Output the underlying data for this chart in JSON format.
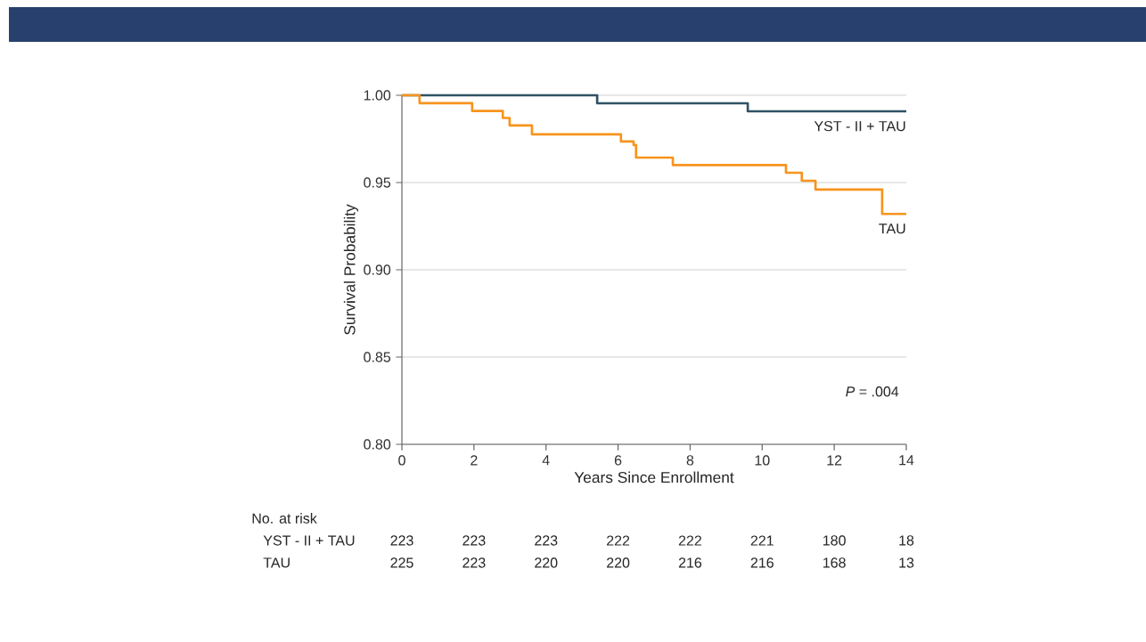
{
  "chart_data": {
    "type": "step",
    "xlabel": "Years Since Enrollment",
    "ylabel": "Survival Probability",
    "xlim": [
      0,
      14
    ],
    "ylim": [
      0.8,
      1.0
    ],
    "xticks": [
      0,
      2,
      4,
      6,
      8,
      10,
      12,
      14
    ],
    "yticks": [
      {
        "value": 0.8,
        "label": "0.80"
      },
      {
        "value": 0.85,
        "label": "0.85"
      },
      {
        "value": 0.9,
        "label": "0.90"
      },
      {
        "value": 0.95,
        "label": "0.95"
      },
      {
        "value": 1.0,
        "label": "1.00"
      }
    ],
    "grid": "y",
    "series": [
      {
        "name": "YST - II + TAU",
        "color": "#2f5263",
        "x": [
          0,
          5.42,
          9.6,
          14
        ],
        "values": [
          1.0,
          0.9954,
          0.9908,
          0.9908
        ]
      },
      {
        "name": "TAU",
        "color": "#f7941d",
        "x": [
          0,
          0.49,
          1.95,
          2.8,
          2.99,
          3.61,
          6.08,
          6.43,
          6.5,
          7.52,
          10.66,
          11.1,
          11.48,
          13.33,
          14
        ],
        "values": [
          1.0,
          0.9955,
          0.991,
          0.987,
          0.9827,
          0.9776,
          0.9735,
          0.9715,
          0.9643,
          0.96,
          0.9556,
          0.951,
          0.946,
          0.932,
          0.932
        ]
      }
    ],
    "annotations": [
      "*P* = .004",
      "No. at risk",
      "YST - II + TAU",
      "223",
      "223",
      "223",
      "222",
      "222",
      "221",
      "180",
      "18",
      "TAU",
      "225",
      "223",
      "220",
      "220",
      "216",
      "216",
      "168",
      "13"
    ]
  }
}
